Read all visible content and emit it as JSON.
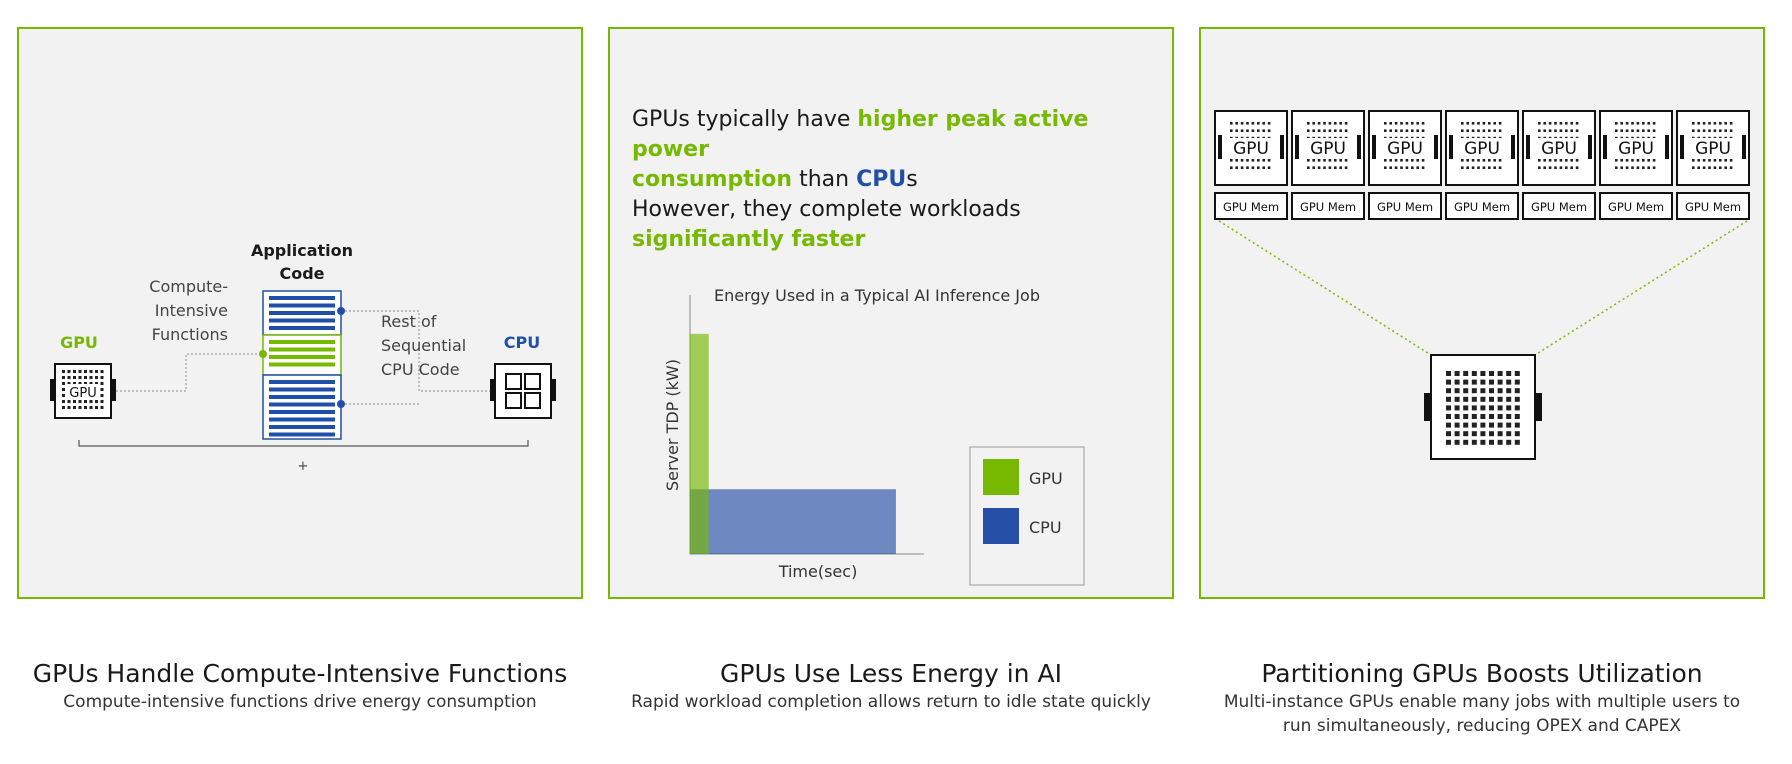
{
  "colors": {
    "accent": "#76b900",
    "cpu_blue": "#1f4fa8",
    "panel_bg": "#f2f2f2"
  },
  "panel1": {
    "gpu_label": "GPU",
    "gpu_chip_text": "GPU",
    "cpu_label": "CPU",
    "app_code_line1": "Application",
    "app_code_line2": "Code",
    "compute_line1": "Compute-",
    "compute_line2": "Intensive",
    "compute_line3": "Functions",
    "rest_line1": "Rest of",
    "rest_line2": "Sequential",
    "rest_line3": "CPU Code",
    "plus": "+"
  },
  "panel2": {
    "headline1_part1": "GPUs typically have ",
    "headline1_green1": "higher peak active power",
    "headline1_green2": "consumption",
    "headline1_part2": " than ",
    "headline1_blue": "CPU",
    "headline1_part3": "s",
    "headline2_line1": "However, they complete workloads",
    "headline2_green": "significantly faster"
  },
  "chart_data": {
    "type": "bar",
    "title": "Energy Used in a Typical AI Inference Job",
    "xlabel": "Time(sec)",
    "ylabel": "Server TDP (kW)",
    "series": [
      {
        "name": "GPU",
        "color": "#76b900",
        "duration": 0.08,
        "power": 0.85
      },
      {
        "name": "CPU",
        "color": "#2650a8",
        "duration": 0.88,
        "power": 0.25
      }
    ],
    "legend": [
      {
        "label": "GPU",
        "color": "#76b900"
      },
      {
        "label": "CPU",
        "color": "#2650a8"
      }
    ]
  },
  "panel3": {
    "gpu_chips": [
      "GPU",
      "GPU",
      "GPU",
      "GPU",
      "GPU",
      "GPU",
      "GPU"
    ],
    "mem_labels": [
      "GPU Mem",
      "GPU Mem",
      "GPU Mem",
      "GPU Mem",
      "GPU Mem",
      "GPU Mem",
      "GPU Mem"
    ]
  },
  "captions": {
    "c1_title": "GPUs Handle Compute-Intensive Functions",
    "c1_sub": "Compute-intensive functions drive energy consumption",
    "c2_title": "GPUs Use Less Energy in AI",
    "c2_sub": "Rapid workload completion allows return to idle state quickly",
    "c3_title": "Partitioning GPUs Boosts Utilization",
    "c3_sub_line1": "Multi-instance GPUs enable many jobs with multiple users to",
    "c3_sub_line2": "run simultaneously, reducing OPEX and CAPEX"
  }
}
